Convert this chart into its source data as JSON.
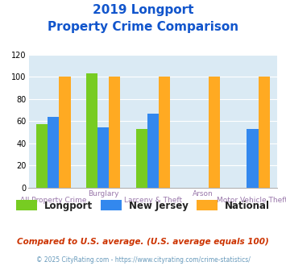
{
  "title_line1": "2019 Longport",
  "title_line2": "Property Crime Comparison",
  "categories": [
    "All Property Crime",
    "Burglary",
    "Larceny & Theft",
    "Arson",
    "Motor Vehicle Theft"
  ],
  "cat_top_labels": [
    "",
    "Burglary",
    "",
    "Arson",
    ""
  ],
  "cat_bot_labels": [
    "All Property Crime",
    "",
    "Larceny & Theft",
    "",
    "Motor Vehicle Theft"
  ],
  "longport": [
    57,
    103,
    53,
    null,
    null
  ],
  "new_jersey": [
    64,
    54,
    67,
    null,
    53
  ],
  "national": [
    100,
    100,
    100,
    100,
    100
  ],
  "color_longport": "#77cc22",
  "color_nj": "#3388ee",
  "color_national": "#ffaa22",
  "ylim": [
    0,
    120
  ],
  "yticks": [
    0,
    20,
    40,
    60,
    80,
    100,
    120
  ],
  "bgcolor": "#daeaf4",
  "footer_text": "Compared to U.S. average. (U.S. average equals 100)",
  "copyright_text": "© 2025 CityRating.com - https://www.cityrating.com/crime-statistics/",
  "legend_labels": [
    "Longport",
    "New Jersey",
    "National"
  ],
  "title_color": "#1155cc",
  "footer_color": "#cc3300",
  "copyright_color": "#6699bb",
  "label_color": "#9977aa"
}
